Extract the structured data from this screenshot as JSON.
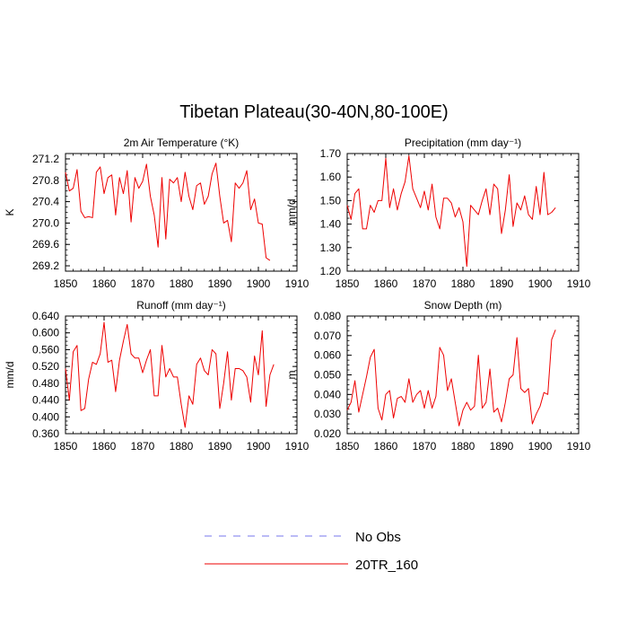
{
  "figure": {
    "title": "Tibetan Plateau(30-40N,80-100E)",
    "legend": [
      {
        "name": "No Obs",
        "color": "#7777ee",
        "dash": true
      },
      {
        "name": "20TR_160",
        "color": "#ee0000",
        "dash": false
      }
    ]
  },
  "chart_data": [
    {
      "type": "line",
      "title": "2m Air Temperature (°K)",
      "ylabel": "K",
      "xlim": [
        1850,
        1910
      ],
      "ylim": [
        269.1,
        271.3
      ],
      "xticks": [
        1850,
        1860,
        1870,
        1880,
        1890,
        1900,
        1910
      ],
      "yticks": [
        269.2,
        269.6,
        270.0,
        270.4,
        270.8,
        271.2
      ],
      "ytick_labels": [
        "269.2",
        "269.6",
        "270.0",
        "270.4",
        "270.8",
        "271.2"
      ],
      "x_start": 1850,
      "series": [
        {
          "name": "20TR_160",
          "color": "#ee0000",
          "values": [
            270.95,
            270.6,
            270.65,
            271.0,
            270.22,
            270.1,
            270.12,
            270.1,
            270.95,
            271.05,
            270.55,
            270.85,
            270.9,
            270.15,
            270.85,
            270.55,
            270.98,
            270.02,
            270.85,
            270.65,
            270.78,
            271.1,
            270.5,
            270.15,
            269.55,
            270.85,
            269.7,
            270.82,
            270.75,
            270.85,
            270.4,
            270.95,
            270.5,
            270.25,
            270.7,
            270.75,
            270.35,
            270.5,
            270.92,
            271.12,
            270.5,
            270.0,
            270.05,
            269.65,
            270.75,
            270.65,
            270.75,
            270.98,
            270.25,
            270.45,
            270.0,
            269.98,
            269.35,
            269.3
          ]
        }
      ]
    },
    {
      "type": "line",
      "title": "Precipitation (mm day⁻¹)",
      "ylabel": "mm/d",
      "xlim": [
        1850,
        1910
      ],
      "ylim": [
        1.2,
        1.7
      ],
      "xticks": [
        1850,
        1860,
        1870,
        1880,
        1890,
        1900,
        1910
      ],
      "yticks": [
        1.2,
        1.3,
        1.4,
        1.5,
        1.6,
        1.7
      ],
      "ytick_labels": [
        "1.20",
        "1.30",
        "1.40",
        "1.50",
        "1.60",
        "1.70"
      ],
      "x_start": 1850,
      "series": [
        {
          "name": "20TR_160",
          "color": "#ee0000",
          "values": [
            1.48,
            1.42,
            1.53,
            1.55,
            1.38,
            1.38,
            1.48,
            1.45,
            1.5,
            1.5,
            1.68,
            1.47,
            1.55,
            1.46,
            1.53,
            1.58,
            1.69,
            1.55,
            1.51,
            1.47,
            1.54,
            1.46,
            1.57,
            1.43,
            1.38,
            1.51,
            1.51,
            1.49,
            1.43,
            1.47,
            1.41,
            1.22,
            1.48,
            1.46,
            1.44,
            1.5,
            1.55,
            1.44,
            1.57,
            1.55,
            1.36,
            1.46,
            1.61,
            1.39,
            1.49,
            1.46,
            1.52,
            1.44,
            1.42,
            1.56,
            1.44,
            1.62,
            1.44,
            1.45,
            1.47
          ]
        }
      ]
    },
    {
      "type": "line",
      "title": "Runoff (mm day⁻¹)",
      "ylabel": "mm/d",
      "xlim": [
        1850,
        1910
      ],
      "ylim": [
        0.36,
        0.64
      ],
      "xticks": [
        1850,
        1860,
        1870,
        1880,
        1890,
        1900,
        1910
      ],
      "yticks": [
        0.36,
        0.4,
        0.44,
        0.48,
        0.52,
        0.56,
        0.6,
        0.64
      ],
      "ytick_labels": [
        "0.360",
        "0.400",
        "0.440",
        "0.480",
        "0.520",
        "0.560",
        "0.600",
        "0.640"
      ],
      "x_start": 1850,
      "series": [
        {
          "name": "20TR_160",
          "color": "#ee0000",
          "values": [
            0.515,
            0.44,
            0.555,
            0.57,
            0.415,
            0.42,
            0.49,
            0.53,
            0.525,
            0.55,
            0.625,
            0.53,
            0.535,
            0.46,
            0.535,
            0.58,
            0.62,
            0.55,
            0.54,
            0.54,
            0.505,
            0.535,
            0.56,
            0.45,
            0.45,
            0.57,
            0.495,
            0.515,
            0.495,
            0.495,
            0.43,
            0.375,
            0.45,
            0.43,
            0.525,
            0.54,
            0.51,
            0.5,
            0.56,
            0.55,
            0.42,
            0.48,
            0.555,
            0.44,
            0.515,
            0.515,
            0.51,
            0.495,
            0.435,
            0.545,
            0.5,
            0.605,
            0.425,
            0.5,
            0.525
          ]
        }
      ]
    },
    {
      "type": "line",
      "title": "Snow Depth (m)",
      "ylabel": "m",
      "xlim": [
        1850,
        1910
      ],
      "ylim": [
        0.02,
        0.08
      ],
      "xticks": [
        1850,
        1860,
        1870,
        1880,
        1890,
        1900,
        1910
      ],
      "yticks": [
        0.02,
        0.03,
        0.04,
        0.05,
        0.06,
        0.07,
        0.08
      ],
      "ytick_labels": [
        "0.020",
        "0.030",
        "0.040",
        "0.050",
        "0.060",
        "0.070",
        "0.080"
      ],
      "x_start": 1850,
      "series": [
        {
          "name": "20TR_160",
          "color": "#ee0000",
          "values": [
            0.032,
            0.036,
            0.047,
            0.031,
            0.04,
            0.049,
            0.059,
            0.063,
            0.033,
            0.027,
            0.04,
            0.042,
            0.028,
            0.038,
            0.039,
            0.036,
            0.048,
            0.036,
            0.04,
            0.042,
            0.033,
            0.042,
            0.033,
            0.039,
            0.064,
            0.06,
            0.042,
            0.048,
            0.036,
            0.024,
            0.032,
            0.036,
            0.032,
            0.034,
            0.06,
            0.033,
            0.036,
            0.053,
            0.031,
            0.033,
            0.026,
            0.036,
            0.048,
            0.05,
            0.069,
            0.043,
            0.041,
            0.043,
            0.025,
            0.03,
            0.034,
            0.041,
            0.04,
            0.068,
            0.073
          ]
        }
      ]
    }
  ]
}
